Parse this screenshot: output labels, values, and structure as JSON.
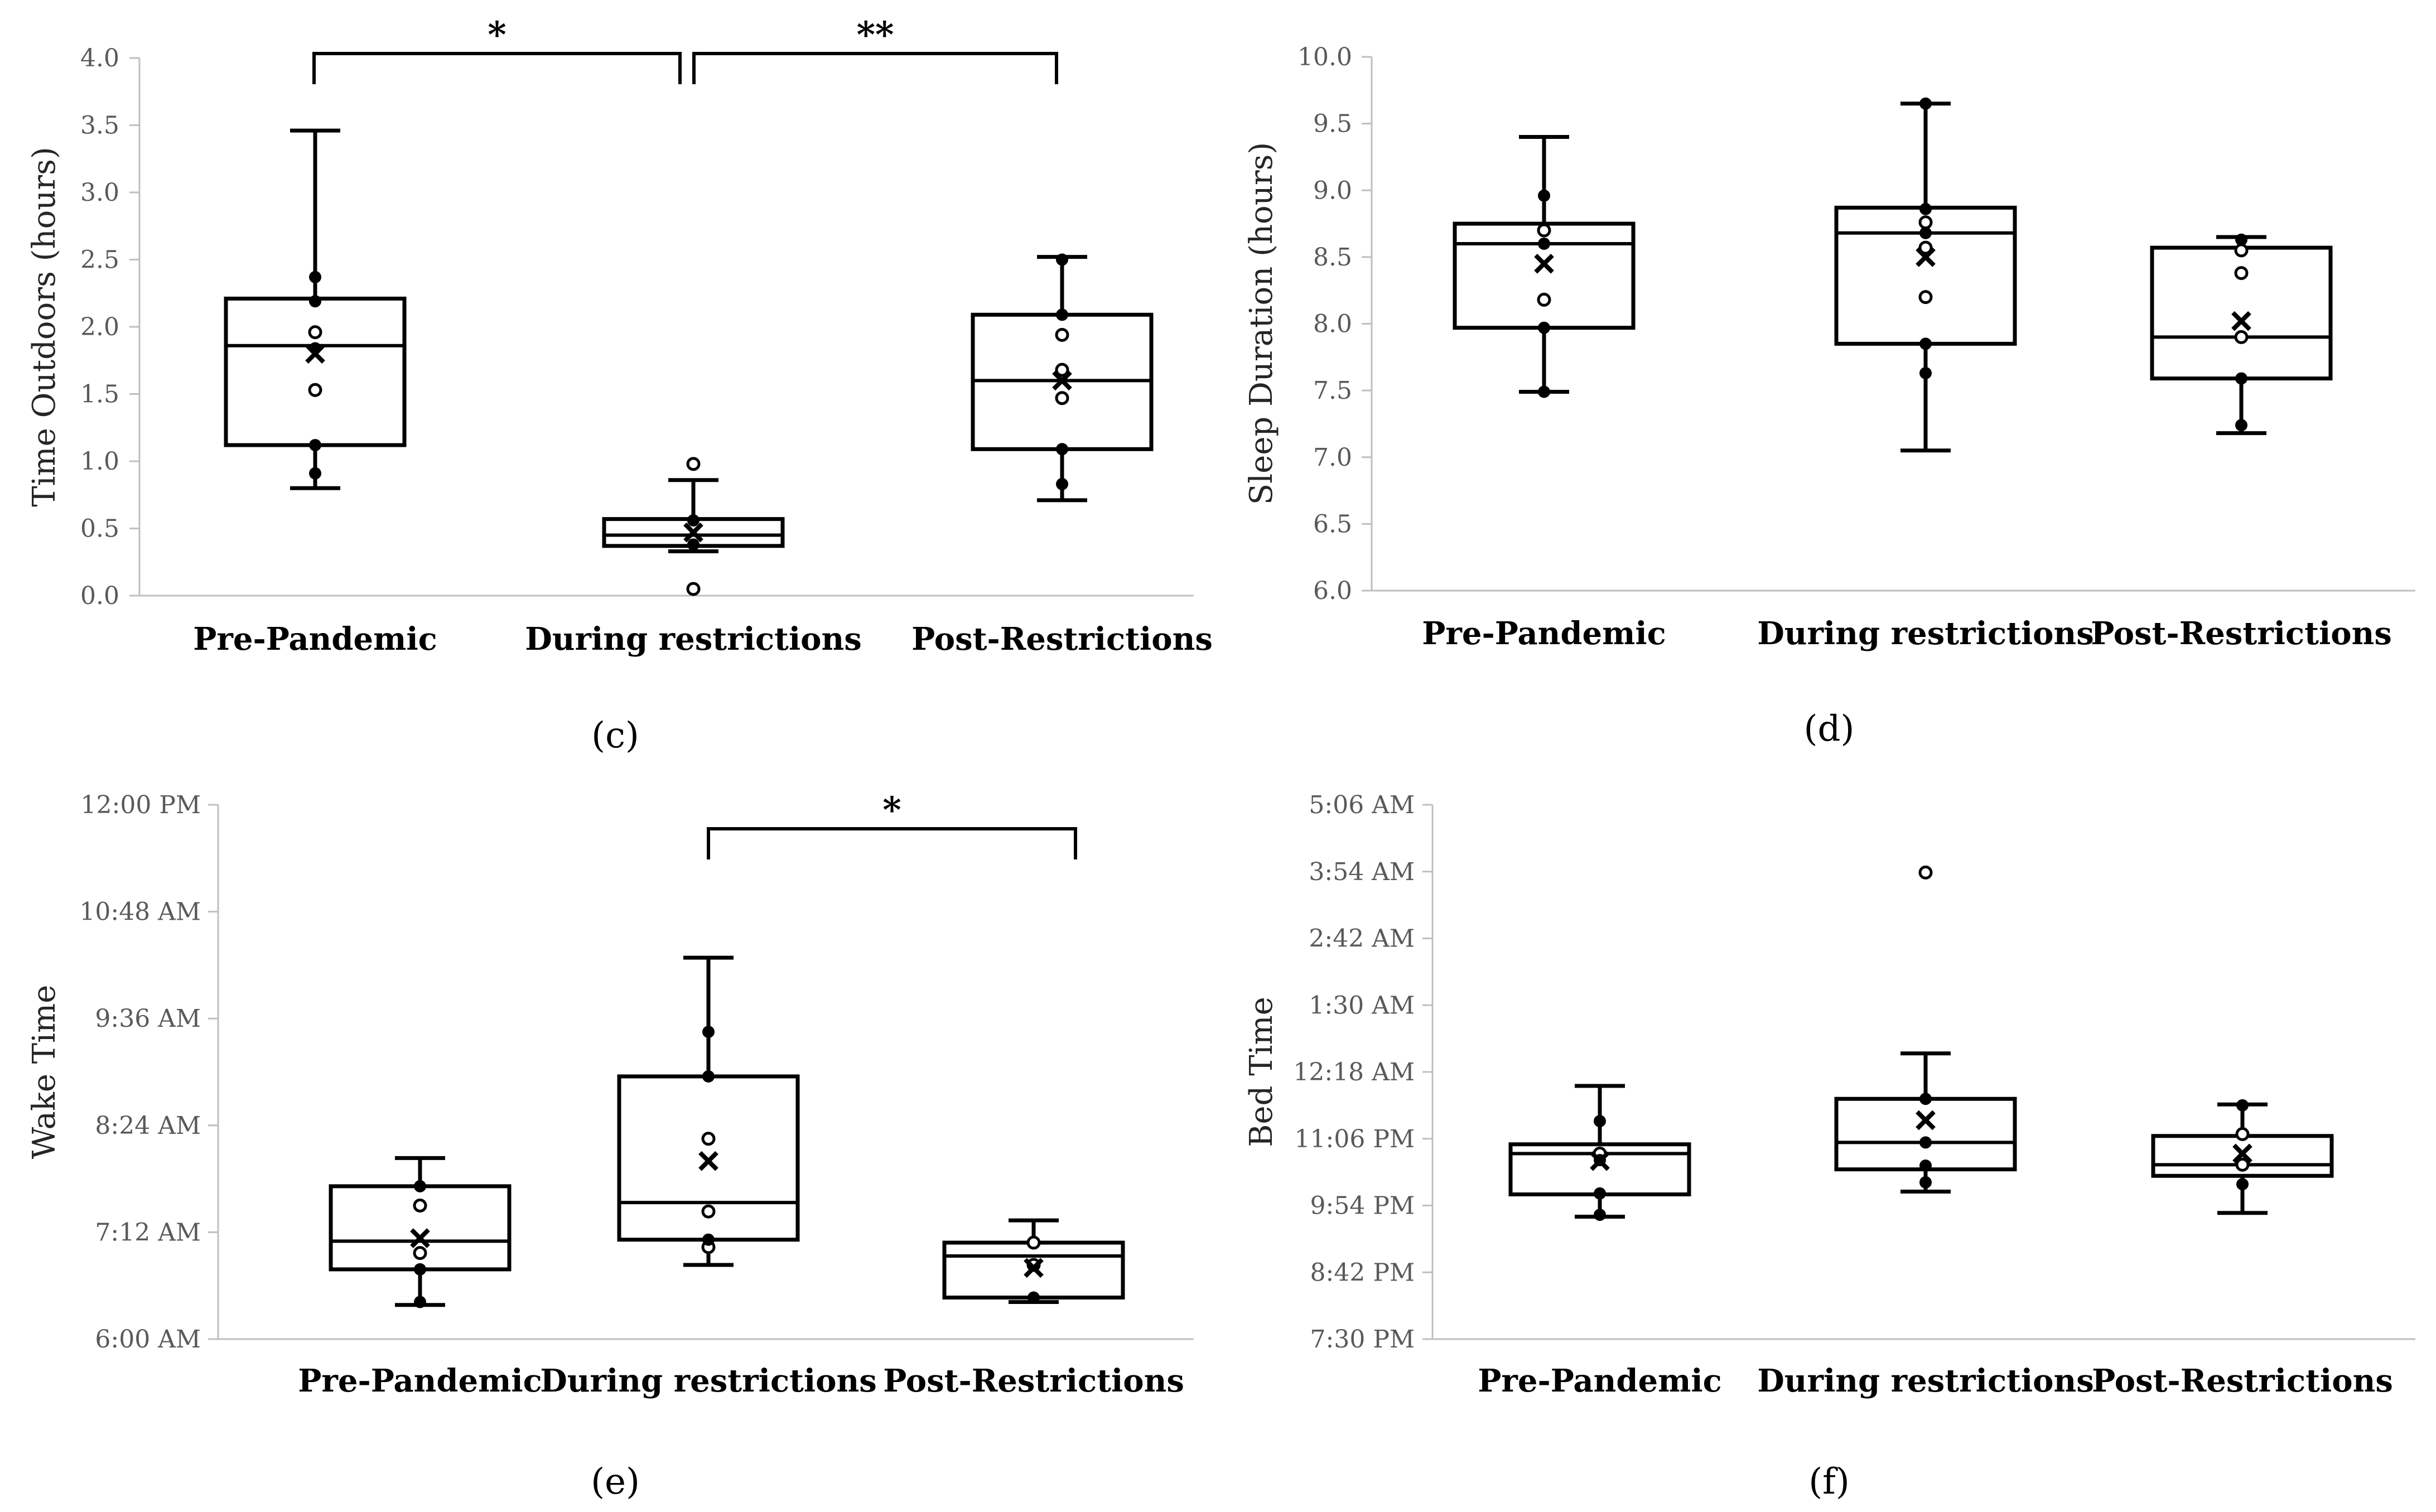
{
  "chart_data": [
    {
      "id": "c",
      "type": "box",
      "panel_label": "(c)",
      "ylabel": "Time Outdoors (hours)",
      "ylim": [
        0,
        4
      ],
      "yticks": [
        0,
        0.5,
        1,
        1.5,
        2,
        2.5,
        3,
        3.5,
        4
      ],
      "ytick_labels": [
        "0.0",
        "0.5",
        "1.0",
        "1.5",
        "2.0",
        "2.5",
        "3.0",
        "3.5",
        "4.0"
      ],
      "categories": [
        "Pre-Pandemic",
        "During restrictions",
        "Post-Restrictions"
      ],
      "boxes": [
        {
          "min": 0.8,
          "q1": 1.12,
          "median": 1.86,
          "q3": 2.21,
          "max": 3.46,
          "mean": 1.8,
          "points_filled": [
            2.37,
            2.19,
            1.84,
            1.12,
            0.91
          ],
          "points_open": [
            1.96,
            1.53
          ]
        },
        {
          "min": 0.33,
          "q1": 0.37,
          "median": 0.45,
          "q3": 0.57,
          "max": 0.86,
          "mean": 0.47,
          "points_filled": [
            0.56,
            0.38
          ],
          "points_open": [
            0.98,
            0.05
          ]
        },
        {
          "min": 0.71,
          "q1": 1.09,
          "median": 1.6,
          "q3": 2.09,
          "max": 2.52,
          "mean": 1.6,
          "points_filled": [
            2.5,
            2.09,
            1.09,
            0.83
          ],
          "points_open": [
            1.94,
            1.68,
            1.47
          ]
        }
      ],
      "significance": [
        {
          "from": 0,
          "to": 1,
          "label": "*"
        },
        {
          "from": 1,
          "to": 2,
          "label": "**"
        }
      ]
    },
    {
      "id": "d",
      "type": "box",
      "panel_label": "(d)",
      "ylabel": "Sleep Duration (hours)",
      "ylim": [
        6,
        10
      ],
      "yticks": [
        6,
        6.5,
        7,
        7.5,
        8,
        8.5,
        9,
        9.5,
        10
      ],
      "ytick_labels": [
        "6.0",
        "6.5",
        "7.0",
        "7.5",
        "8.0",
        "8.5",
        "9.0",
        "9.5",
        "10.0"
      ],
      "categories": [
        "Pre-Pandemic",
        "During restrictions",
        "Post-Restrictions"
      ],
      "boxes": [
        {
          "min": 7.49,
          "q1": 7.97,
          "median": 8.6,
          "q3": 8.75,
          "max": 9.4,
          "mean": 8.45,
          "points_filled": [
            8.96,
            8.6,
            7.97,
            7.49
          ],
          "points_open": [
            8.7,
            8.18
          ]
        },
        {
          "min": 7.05,
          "q1": 7.85,
          "median": 8.68,
          "q3": 8.87,
          "max": 9.65,
          "mean": 8.5,
          "points_filled": [
            9.65,
            8.86,
            8.68,
            7.85,
            7.63
          ],
          "points_open": [
            8.76,
            8.57,
            8.2
          ]
        },
        {
          "min": 7.18,
          "q1": 7.59,
          "median": 7.9,
          "q3": 8.57,
          "max": 8.65,
          "mean": 8.02,
          "points_filled": [
            8.63,
            7.59,
            7.24
          ],
          "points_open": [
            8.55,
            8.38,
            7.9
          ]
        }
      ],
      "significance": []
    },
    {
      "id": "e",
      "type": "box",
      "panel_label": "(e)",
      "ylabel": "Wake Time",
      "ylim": [
        360,
        720
      ],
      "yticks": [
        360,
        432,
        504,
        576,
        648,
        720
      ],
      "ytick_labels": [
        "6:00 AM",
        "7:12 AM",
        "8:24 AM",
        "9:36 AM",
        "10:48 AM",
        "12:00 PM"
      ],
      "value_unit": "minutes after midnight",
      "categories": [
        "Pre-Pandemic",
        "During restrictions",
        "Post-Restrictions"
      ],
      "boxes": [
        {
          "min": 383,
          "q1": 407,
          "median": 426,
          "q3": 463,
          "max": 482,
          "mean": 428,
          "points_filled": [
            463,
            407,
            385
          ],
          "points_open": [
            450,
            418
          ]
        },
        {
          "min": 410,
          "q1": 427,
          "median": 452,
          "q3": 537,
          "max": 617,
          "mean": 480,
          "points_filled": [
            567,
            537,
            427
          ],
          "points_open": [
            495,
            446,
            422
          ]
        },
        {
          "min": 385,
          "q1": 388,
          "median": 416,
          "q3": 425,
          "max": 440,
          "mean": 408,
          "points_filled": [
            388
          ],
          "points_open": [
            425,
            410
          ]
        }
      ],
      "significance": [
        {
          "from": 1,
          "to": 2,
          "label": "*"
        }
      ]
    },
    {
      "id": "f",
      "type": "box",
      "panel_label": "(f)",
      "ylabel": "Bed Time",
      "ylim": [
        1170,
        1746
      ],
      "yticks": [
        1170,
        1242,
        1314,
        1386,
        1458,
        1530,
        1602,
        1674,
        1746
      ],
      "ytick_labels": [
        "7:30 PM",
        "8:42 PM",
        "9:54 PM",
        "11:06 PM",
        "12:18 AM",
        "1:30 AM",
        "2:42 AM",
        "3:54 AM",
        "5:06 AM"
      ],
      "value_unit": "minutes after midnight (day 1), values past 1440 are after midnight",
      "categories": [
        "Pre-Pandemic",
        "During restrictions",
        "Post-Restrictions"
      ],
      "boxes": [
        {
          "min": 1302,
          "q1": 1326,
          "median": 1370,
          "q3": 1380,
          "max": 1443,
          "mean": 1362,
          "points_filled": [
            1405,
            1363,
            1327,
            1304
          ],
          "points_open": [
            1370
          ]
        },
        {
          "min": 1329,
          "q1": 1353,
          "median": 1382,
          "q3": 1429,
          "max": 1478,
          "mean": 1406,
          "points_filled": [
            1429,
            1382,
            1357,
            1339
          ],
          "points_open": [
            1673
          ]
        },
        {
          "min": 1306,
          "q1": 1346,
          "median": 1358,
          "q3": 1389,
          "max": 1423,
          "mean": 1370,
          "points_filled": [
            1422,
            1337
          ],
          "points_open": [
            1391,
            1358
          ]
        }
      ],
      "significance": []
    }
  ]
}
